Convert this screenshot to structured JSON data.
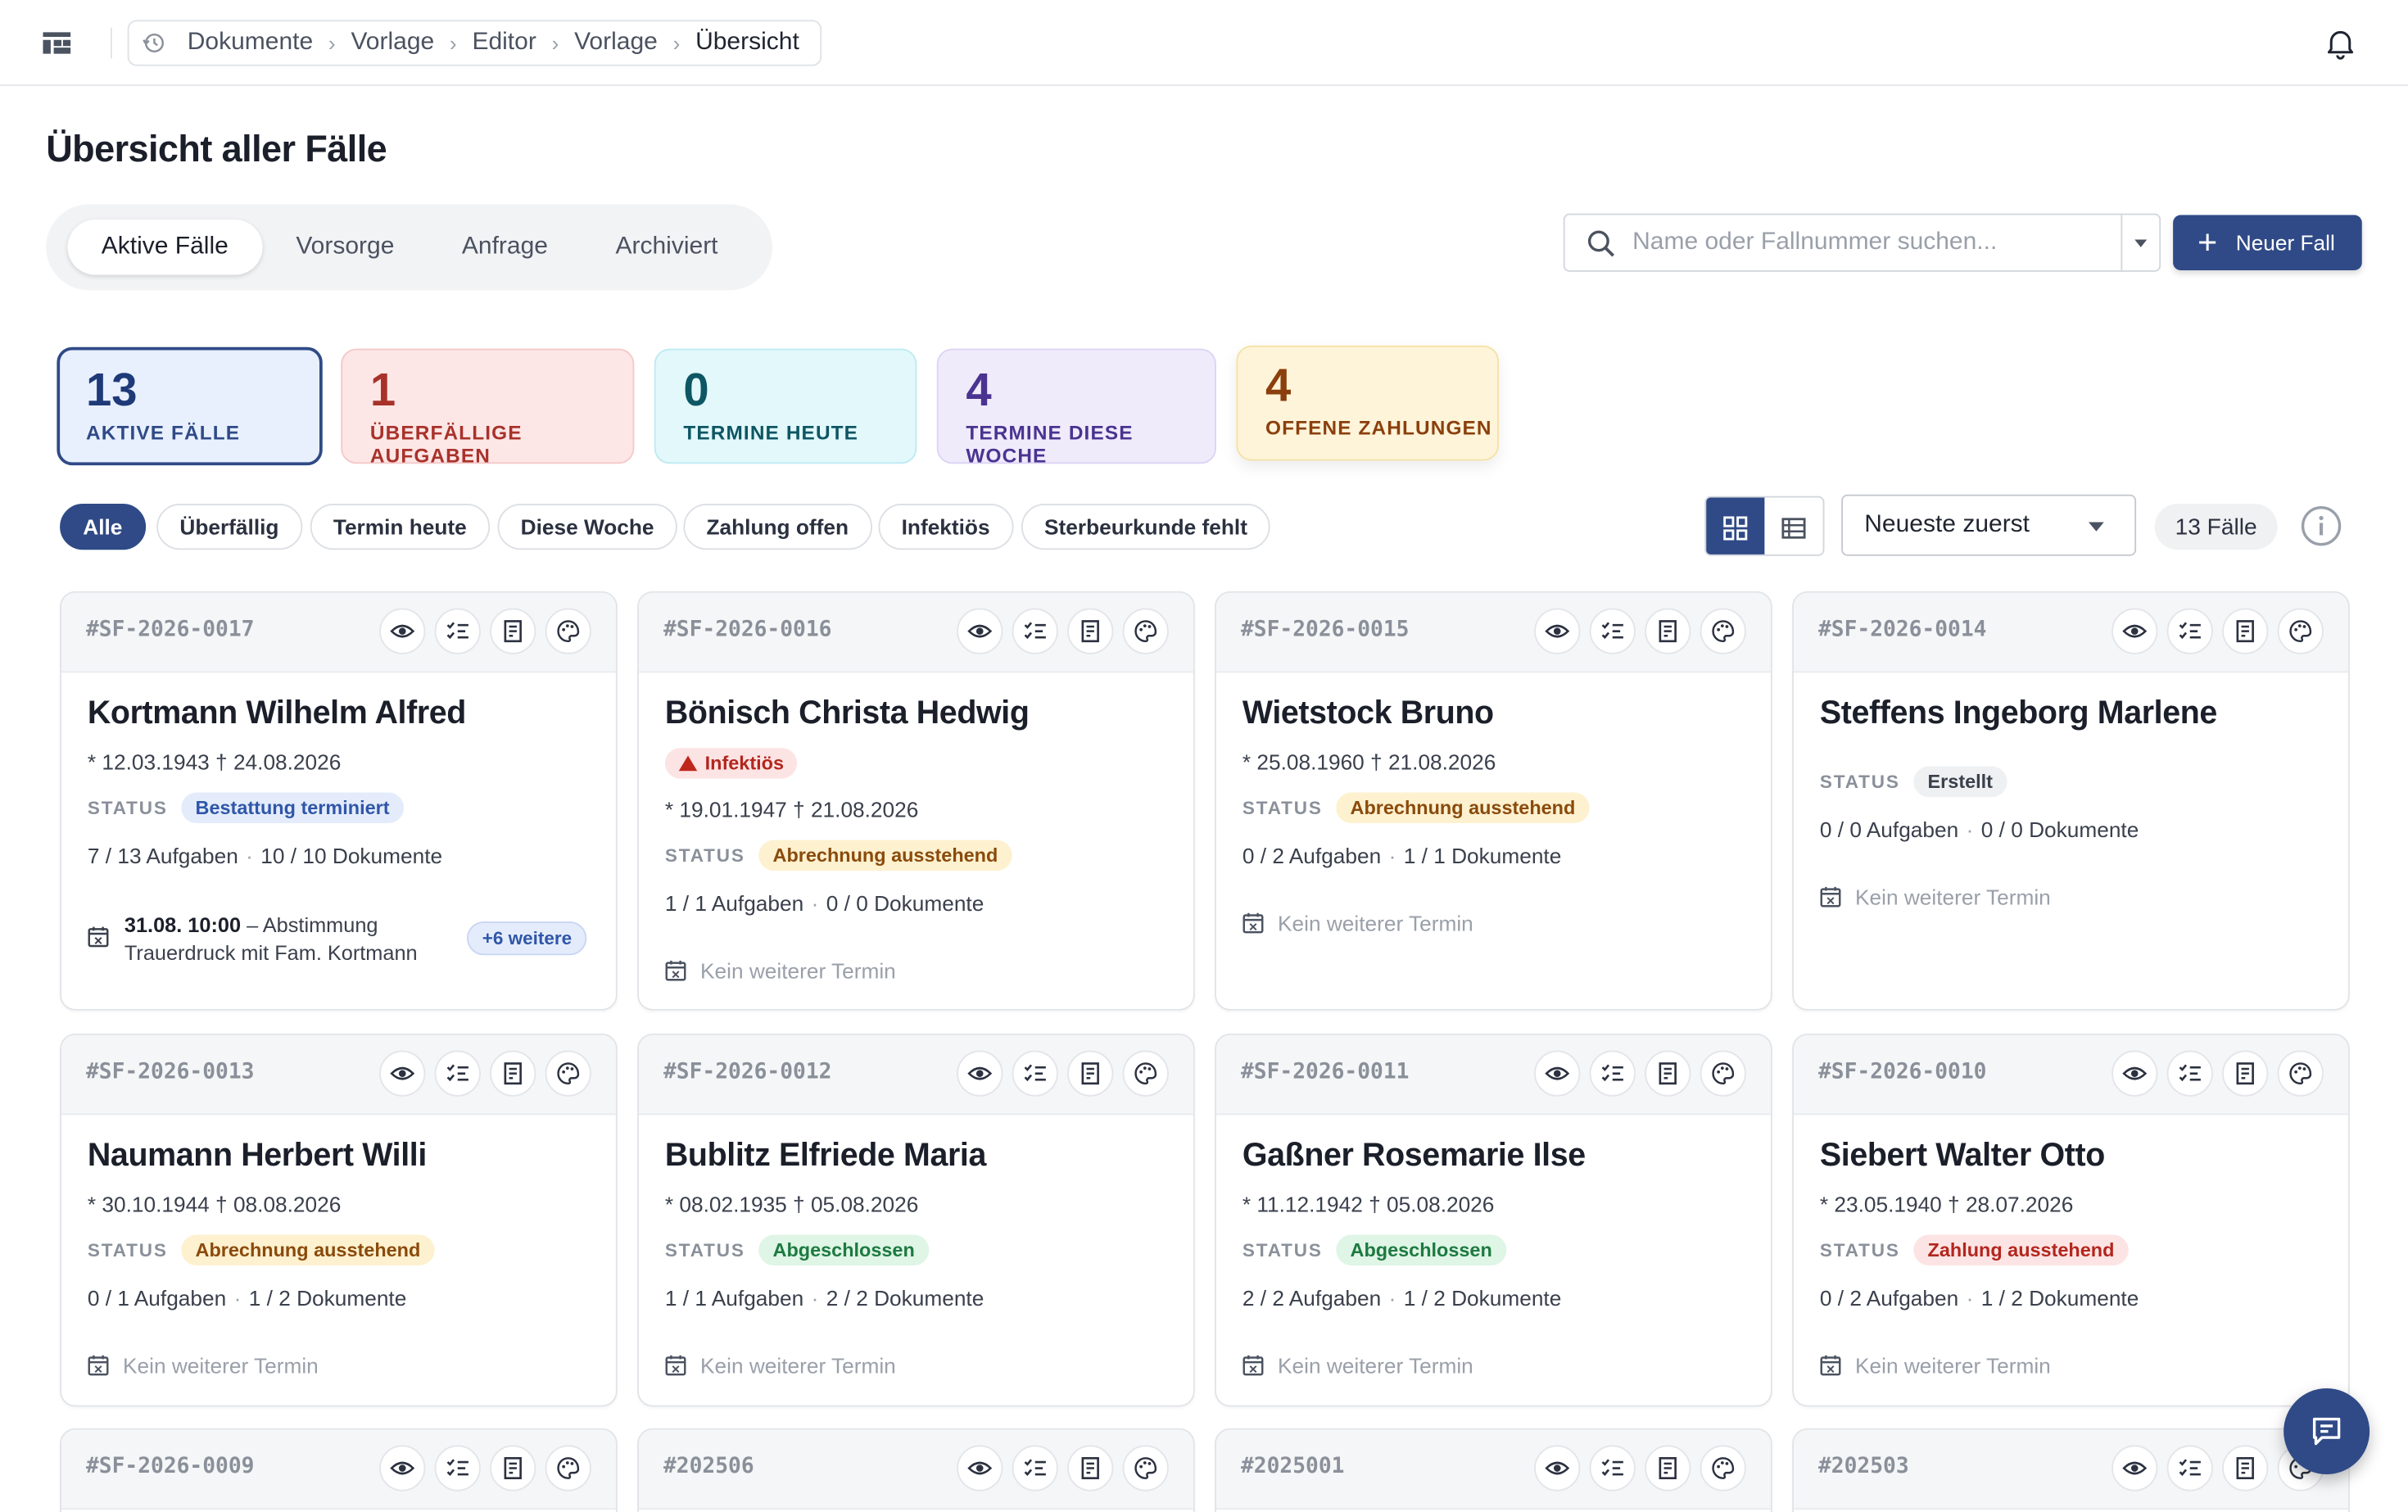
{
  "breadcrumb": [
    "Dokumente",
    "Vorlage",
    "Editor",
    "Vorlage",
    "Übersicht"
  ],
  "page_title": "Übersicht aller Fälle",
  "tabs": [
    "Aktive Fälle",
    "Vorsorge",
    "Anfrage",
    "Archiviert"
  ],
  "search": {
    "placeholder": "Name oder Fallnummer suchen..."
  },
  "new_button": "Neuer Fall",
  "stats": [
    {
      "num": "13",
      "label": "AKTIVE FÄLLE",
      "color": "#1f3a78"
    },
    {
      "num": "1",
      "label": "ÜBERFÄLLIGE AUFGABEN",
      "color": "#a8322a"
    },
    {
      "num": "0",
      "label": "TERMINE HEUTE",
      "color": "#0e5663"
    },
    {
      "num": "4",
      "label": "TERMINE DIESE WOCHE",
      "color": "#4a3391"
    },
    {
      "num": "4",
      "label": "OFFENE ZAHLUNGEN",
      "color": "#8a3f0d"
    }
  ],
  "filters": [
    "Alle",
    "Überfällig",
    "Termin heute",
    "Diese Woche",
    "Zahlung offen",
    "Infektiös",
    "Sterbeurkunde fehlt"
  ],
  "sort": {
    "selected": "Neueste zuerst"
  },
  "count": "13 Fälle",
  "status_label": "STATUS",
  "cards": [
    {
      "id": "#SF-2026-0017",
      "name": "Kortmann Wilhelm Alfred",
      "dates": "* 12.03.1943 † 24.08.2026",
      "status": "Bestattung terminiert",
      "tasks": "7 / 13 Aufgaben",
      "docs": "10 / 10 Dokumente",
      "appt_time": "31.08. 10:00",
      "appt_text": "– Abstimmung Trauerdruck mit Fam. Kortmann",
      "more": "+6 weitere"
    },
    {
      "id": "#SF-2026-0016",
      "name": "Bönisch Christa Hedwig",
      "infectious": "Infektiös",
      "dates": "* 19.01.1947 † 21.08.2026",
      "status": "Abrechnung ausstehend",
      "tasks": "1 / 1 Aufgaben",
      "docs": "0 / 0 Dokumente",
      "appt": "Kein weiterer Termin"
    },
    {
      "id": "#SF-2026-0015",
      "name": "Wietstock Bruno",
      "dates": "* 25.08.1960 † 21.08.2026",
      "status": "Abrechnung ausstehend",
      "tasks": "0 / 2 Aufgaben",
      "docs": "1 / 1 Dokumente",
      "appt": "Kein weiterer Termin"
    },
    {
      "id": "#SF-2026-0014",
      "name": "Steffens Ingeborg Marlene",
      "status": "Erstellt",
      "tasks": "0 / 0 Aufgaben",
      "docs": "0 / 0 Dokumente",
      "appt": "Kein weiterer Termin"
    },
    {
      "id": "#SF-2026-0013",
      "name": "Naumann Herbert Willi",
      "dates": "* 30.10.1944 † 08.08.2026",
      "status": "Abrechnung ausstehend",
      "tasks": "0 / 1 Aufgaben",
      "docs": "1 / 2 Dokumente",
      "appt": "Kein weiterer Termin"
    },
    {
      "id": "#SF-2026-0012",
      "name": "Bublitz Elfriede Maria",
      "dates": "* 08.02.1935 † 05.08.2026",
      "status": "Abgeschlossen",
      "tasks": "1 / 1 Aufgaben",
      "docs": "2 / 2 Dokumente",
      "appt": "Kein weiterer Termin"
    },
    {
      "id": "#SF-2026-0011",
      "name": "Gaßner Rosemarie Ilse",
      "dates": "* 11.12.1942 † 05.08.2026",
      "status": "Abgeschlossen",
      "tasks": "2 / 2 Aufgaben",
      "docs": "1 / 2 Dokumente",
      "appt": "Kein weiterer Termin"
    },
    {
      "id": "#SF-2026-0010",
      "name": "Siebert Walter Otto",
      "dates": "* 23.05.1940 † 28.07.2026",
      "status": "Zahlung ausstehend",
      "tasks": "0 / 2 Aufgaben",
      "docs": "1 / 2 Dokumente",
      "appt": "Kein weiterer Termin"
    },
    {
      "id": "#SF-2026-0009"
    },
    {
      "id": "#202506"
    },
    {
      "id": "#2025001"
    },
    {
      "id": "#202503"
    }
  ],
  "icons": {
    "app": "grid-layout-icon",
    "history": "history-icon",
    "bell": "bell-icon",
    "search": "search-icon",
    "view": "eye-icon",
    "tasks": "checklist-icon",
    "docs": "receipt-icon",
    "theme": "palette-icon",
    "calendar": "calendar-icon",
    "chat": "chat-icon",
    "info": "info-icon"
  }
}
